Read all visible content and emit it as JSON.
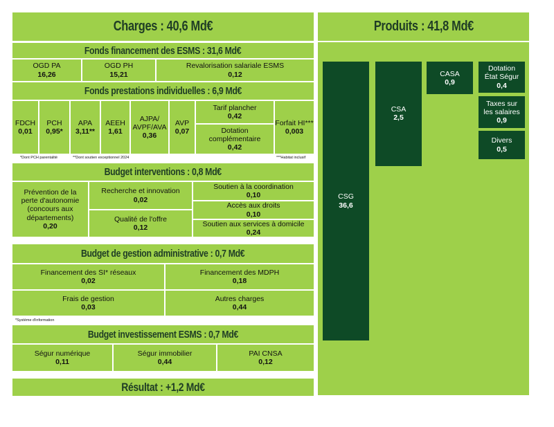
{
  "charges": {
    "title": "Charges : 40,6 Md€"
  },
  "esms": {
    "title": "Fonds financement des ESMS : 31,6 Md€",
    "items": [
      {
        "label": "OGD PA",
        "value": "16,26"
      },
      {
        "label": "OGD PH",
        "value": "15,21"
      },
      {
        "label": "Revalorisation salariale ESMS",
        "value": "0,12"
      }
    ]
  },
  "prestations": {
    "title": "Fonds prestations individuelles : 6,9 Md€",
    "items": [
      {
        "label": "FDCH",
        "value": "0,01"
      },
      {
        "label": "PCH",
        "value": "0,95*"
      },
      {
        "label": "APA",
        "value": "3,11**"
      },
      {
        "label": "AEEH",
        "value": "1,61"
      },
      {
        "label": "AJPA/\nAVPF/AVA",
        "value": "0,36"
      },
      {
        "label": "AVP",
        "value": "0,07"
      },
      {
        "label": "Tarif plancher",
        "value": "0,42"
      },
      {
        "label": "Dotation\ncomplémentaire",
        "value": "0,42"
      },
      {
        "label": "Forfait HI***",
        "value": "0,003"
      }
    ],
    "notes": [
      "*Dont PCH parentalité",
      "**Dont soutien exceptionnel 2024",
      "***Habitat inclusif"
    ]
  },
  "interventions": {
    "title": "Budget interventions : 0,8 Md€",
    "items": [
      {
        "label": "Prévention de la\nperte d'autonomie\n(concours aux\ndépartements)",
        "value": "0,20"
      },
      {
        "label": "Recherche et innovation",
        "value": "0,02"
      },
      {
        "label": "Qualité de l'offre",
        "value": "0,12"
      },
      {
        "label": "Soutien à la coordination",
        "value": "0,10"
      },
      {
        "label": "Accès aux droits",
        "value": "0,10"
      },
      {
        "label": "Soutien aux services à domicile",
        "value": "0,24"
      }
    ]
  },
  "gestion": {
    "title": "Budget de gestion administrative : 0,7 Md€",
    "items": [
      {
        "label": "Financement des SI* réseaux",
        "value": "0,02"
      },
      {
        "label": "Financement des MDPH",
        "value": "0,18"
      },
      {
        "label": "Frais de gestion",
        "value": "0,03"
      },
      {
        "label": "Autres charges",
        "value": "0,44"
      }
    ],
    "note": "*Système d'information"
  },
  "investissement": {
    "title": "Budget investissement ESMS : 0,7 Md€",
    "items": [
      {
        "label": "Ségur numérique",
        "value": "0,11"
      },
      {
        "label": "Ségur immobilier",
        "value": "0,44"
      },
      {
        "label": "PAI CNSA",
        "value": "0,12"
      }
    ]
  },
  "resultat": {
    "title": "Résultat : +1,2 Md€"
  },
  "produits": {
    "title": "Produits : 41,8 Md€",
    "items": [
      {
        "label": "CSG",
        "value": "36,6"
      },
      {
        "label": "CSA",
        "value": "2,5"
      },
      {
        "label": "CASA",
        "value": "0,9"
      },
      {
        "label": "Dotation\nÉtat Ségur",
        "value": "0,4"
      },
      {
        "label": "Taxes sur\nles salaires",
        "value": "0,9"
      },
      {
        "label": "Divers",
        "value": "0,5"
      }
    ]
  },
  "colors": {
    "light_green": "#9ed04a",
    "dark_green": "#0e4a26",
    "title_text": "#1f3d25"
  }
}
